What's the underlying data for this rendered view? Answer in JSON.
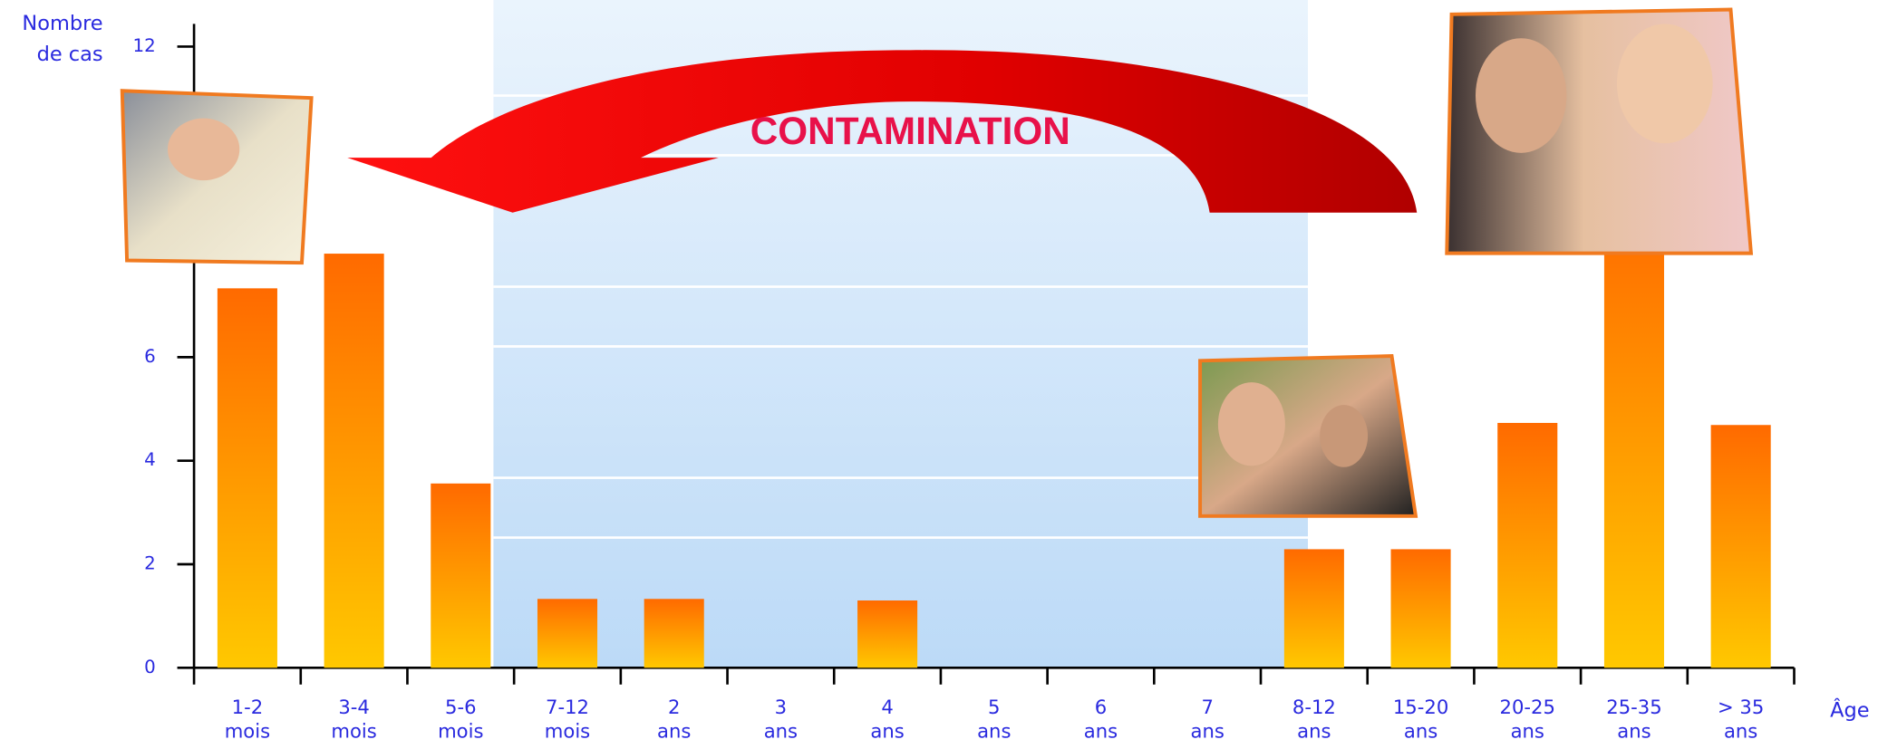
{
  "chart_data": {
    "type": "bar",
    "y_label": [
      "Nombre",
      "de cas"
    ],
    "x_label": "Âge",
    "annotation": "CONTAMINATION",
    "categories": [
      [
        "1-2",
        "mois"
      ],
      [
        "3-4",
        "mois"
      ],
      [
        "5-6",
        "mois"
      ],
      [
        "7-12",
        "mois"
      ],
      [
        "2",
        "ans"
      ],
      [
        "3",
        "ans"
      ],
      [
        "4",
        "ans"
      ],
      [
        "5",
        "ans"
      ],
      [
        "6",
        "ans"
      ],
      [
        "7",
        "ans"
      ],
      [
        "8-12",
        "ans"
      ],
      [
        "15-20",
        "ans"
      ],
      [
        "20-25",
        "ans"
      ],
      [
        "25-35",
        "ans"
      ],
      [
        "> 35",
        "ans"
      ]
    ],
    "values": [
      7.33,
      8,
      3.56,
      1.33,
      1.33,
      0,
      1.3,
      0,
      0,
      0,
      2.29,
      2.29,
      4.73,
      9,
      4.69
    ],
    "color": [
      "#ff6a00",
      "#ffc800"
    ],
    "ylim": [
      0,
      12.9
    ],
    "yticks": [
      0,
      2,
      4,
      6,
      12
    ]
  }
}
